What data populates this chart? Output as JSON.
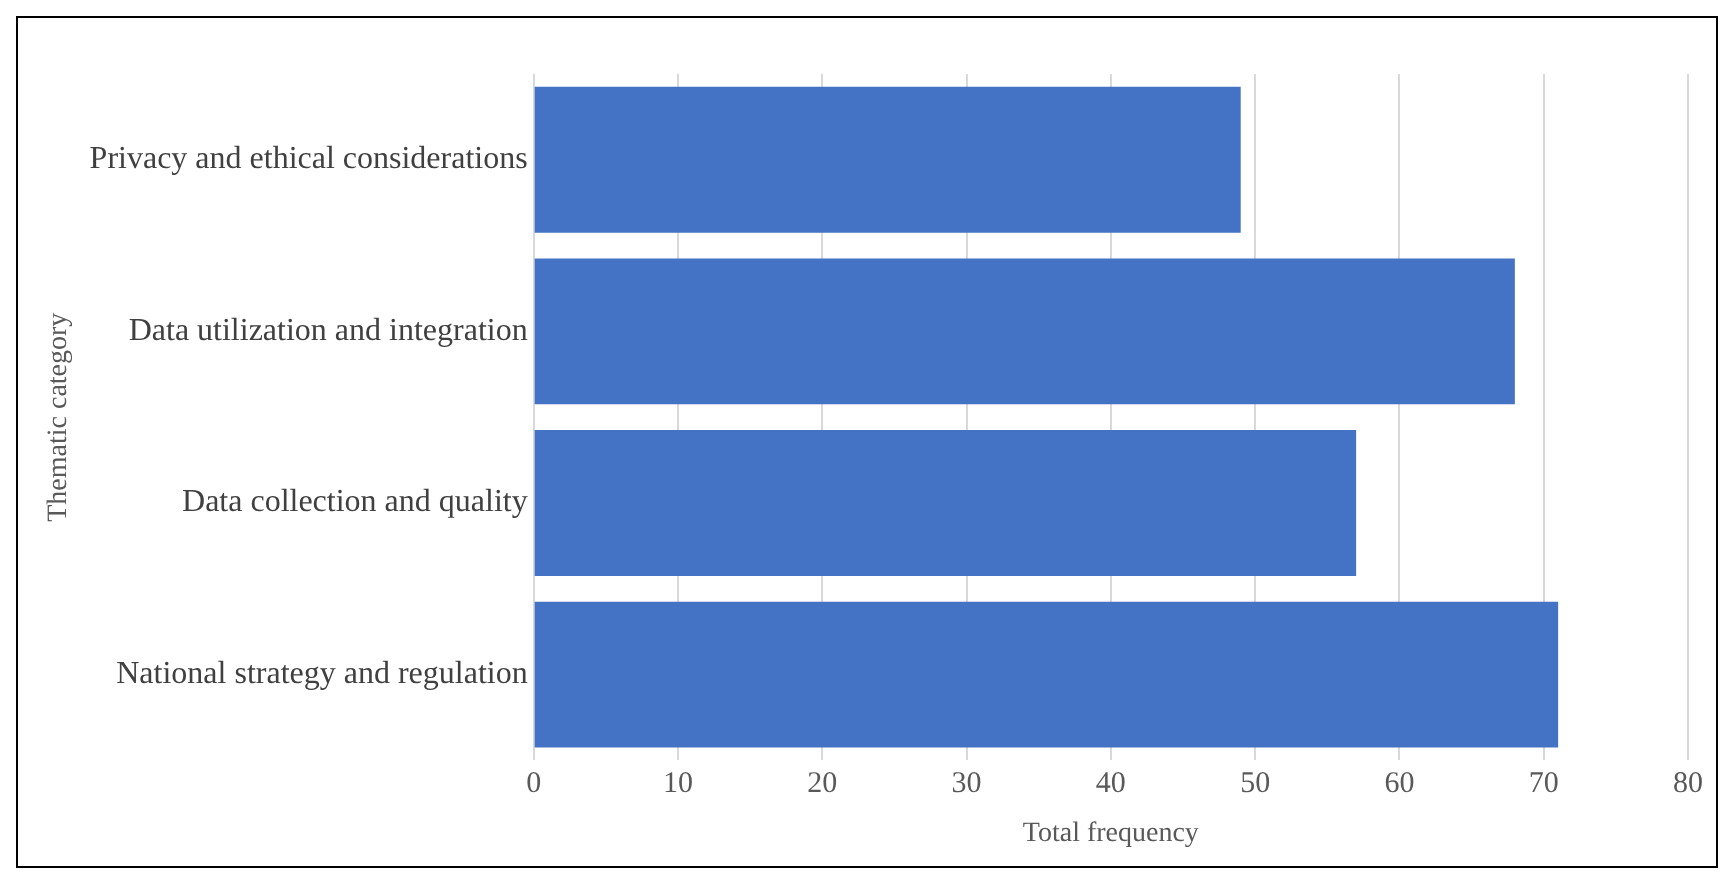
{
  "chart_data": {
    "type": "bar",
    "orientation": "horizontal",
    "xlabel": "Total frequency",
    "ylabel": "Thematic category",
    "categories": [
      "Privacy and ethical considerations",
      "Data utilization and integration",
      "Data collection and quality",
      "National strategy and regulation"
    ],
    "values": [
      49,
      68,
      57,
      71
    ],
    "color": "#4472c4",
    "xlim": [
      0,
      80
    ],
    "xticks": [
      0,
      10,
      20,
      30,
      40,
      50,
      60,
      70,
      80
    ],
    "grid": "x",
    "legend": false
  }
}
